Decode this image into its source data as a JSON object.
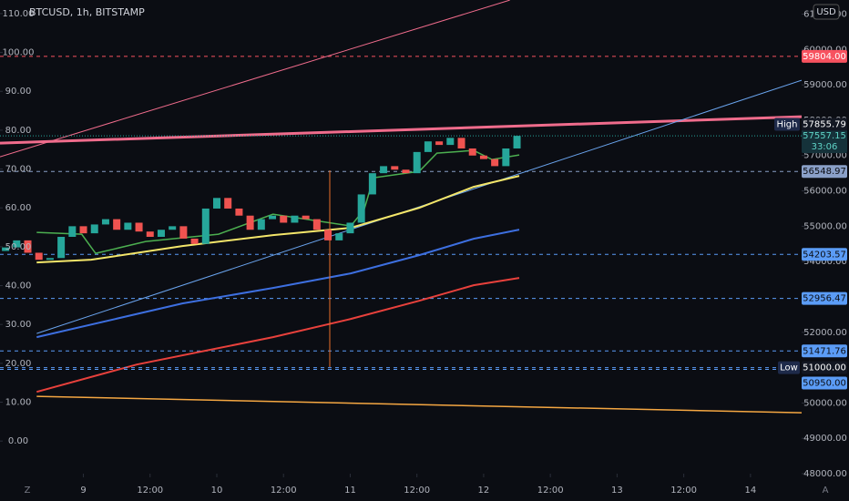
{
  "chart_data": {
    "type": "candlestick",
    "title": "BTCUSD, 1h, BITSTAMP",
    "currency": "USD",
    "corner_labels": [
      "Z",
      "A"
    ],
    "up_color": "#26a69a",
    "down_color": "#ef5350",
    "x": [
      10,
      12,
      14,
      16,
      18,
      20,
      22,
      24,
      26,
      28,
      30,
      32,
      34,
      36,
      38,
      40,
      42,
      44,
      46,
      48,
      50,
      52,
      54,
      56,
      58,
      60,
      62,
      64,
      66,
      68,
      70,
      72,
      74,
      76,
      78,
      80,
      82,
      84,
      86,
      88,
      90,
      92,
      94,
      96,
      98,
      100,
      102
    ],
    "open": [
      54300,
      54400,
      54600,
      54250,
      54050,
      54100,
      54700,
      55000,
      54800,
      55050,
      55200,
      54900,
      55100,
      54850,
      54700,
      54900,
      55000,
      54650,
      54500,
      55500,
      55800,
      55500,
      55300,
      54900,
      55200,
      55300,
      55100,
      55300,
      55200,
      54900,
      54600,
      54800,
      55100,
      55900,
      56500,
      56700,
      56600,
      56500,
      57100,
      57400,
      57300,
      57500,
      57200,
      57000,
      56900,
      56700,
      57200
    ],
    "high": {
      "label": "High",
      "value": 57855.79,
      "value_label": "57855.79"
    },
    "low": {
      "label": "Low",
      "value": 51000,
      "value_label": "51000.00"
    },
    "close": [
      54400,
      54600,
      54250,
      54050,
      54100,
      54700,
      55000,
      54800,
      55050,
      55200,
      54900,
      55100,
      54850,
      54700,
      54900,
      55000,
      54650,
      54500,
      55500,
      55800,
      55500,
      55300,
      54900,
      55200,
      55300,
      55100,
      55300,
      55200,
      54900,
      54600,
      54800,
      55100,
      55900,
      56500,
      56700,
      56600,
      56500,
      57100,
      57400,
      57300,
      57500,
      57200,
      57000,
      56900,
      56700,
      57200,
      57557.15
    ],
    "series": [
      {
        "color": "#f06c8c",
        "line_width": 3,
        "x": [
          9,
          153.2
        ],
        "values": [
          57351,
          58098
        ]
      },
      {
        "color": "#f06c8c",
        "line_width": 1,
        "x": [
          9,
          100.7
        ],
        "values": [
          56964,
          61397
        ]
      },
      {
        "color": "#6aa4ee",
        "line_width": 1,
        "x": [
          15.6,
          153.2
        ],
        "values": [
          51965,
          59129
        ]
      },
      {
        "color": "#f5a742",
        "line_width": 1.5,
        "x": [
          15.6,
          153.2
        ],
        "values": [
          50186,
          49722
        ]
      },
      {
        "color": "#3d6fe0",
        "line_width": 2,
        "x": [
          15.6,
          41.8,
          58.1,
          72.1,
          84.4,
          94.2,
          102.4
        ],
        "values": [
          51862,
          52815,
          53253,
          53666,
          54181,
          54645,
          54903
        ]
      },
      {
        "color": "#e8413c",
        "line_width": 2,
        "x": [
          15.6,
          33.6,
          58.1,
          72.1,
          84.4,
          94.2,
          102.4
        ],
        "values": [
          50315,
          51088,
          51862,
          52377,
          52892,
          53331,
          53537
        ]
      },
      {
        "color": "#f4e66a",
        "line_width": 2,
        "x": [
          15.6,
          25.4,
          41.8,
          58.1,
          72.1,
          84.4,
          94.2,
          102.4
        ],
        "values": [
          53975,
          54052,
          54439,
          54748,
          54954,
          55521,
          56114,
          56423
        ]
      },
      {
        "color": "#4caf50",
        "line_width": 1.5,
        "x": [
          15.6,
          23.7,
          26.2,
          35.2,
          48.3,
          58.1,
          72.1,
          74.5,
          76.2,
          84.4,
          87.6,
          94.2,
          97.5,
          102.4
        ],
        "values": [
          54825,
          54774,
          54232,
          54567,
          54774,
          55341,
          55006,
          55470,
          56371,
          56552,
          57067,
          57144,
          56887,
          57016
        ]
      }
    ],
    "levels": [
      {
        "value": 59804,
        "value_label": "59804.00",
        "color": "#f7525f"
      },
      {
        "value": 56548.97,
        "value_label": "56548.97",
        "color": "#8aa0c8"
      },
      {
        "value": 54203.57,
        "value_label": "54203.57",
        "color": "#5b9cf6"
      },
      {
        "value": 52956.47,
        "value_label": "52956.47",
        "color": "#5b9cf6"
      },
      {
        "value": 51471.76,
        "value_label": "51471.76",
        "color": "#5b9cf6"
      },
      {
        "value": 50950,
        "value_label": "50950.00",
        "color": "#5b9cf6"
      }
    ],
    "last": {
      "value": 57557.15,
      "value_label": "57557.15",
      "countdown": "33:06"
    },
    "xlim": [
      9,
      153.2
    ],
    "xticks": [
      {
        "value": 24,
        "label": "9"
      },
      {
        "value": 36,
        "label": "12:00"
      },
      {
        "value": 48,
        "label": "10"
      },
      {
        "value": 60,
        "label": "12:00"
      },
      {
        "value": 72,
        "label": "11"
      },
      {
        "value": 84,
        "label": "12:00"
      },
      {
        "value": 96,
        "label": "12"
      },
      {
        "value": 108,
        "label": "12:00"
      },
      {
        "value": 120,
        "label": "13"
      },
      {
        "value": 132,
        "label": "12:00"
      },
      {
        "value": 144,
        "label": "14"
      }
    ],
    "ylim": [
      48000,
      61400
    ],
    "yticks": [
      {
        "value": 48000,
        "label": "48000.00"
      },
      {
        "value": 49000,
        "label": "49000.00"
      },
      {
        "value": 50000,
        "label": "50000.00"
      },
      {
        "value": 51000,
        "label": "51000.00"
      },
      {
        "value": 52000,
        "label": "52000.00"
      },
      {
        "value": 53000,
        "label": "53000.00"
      },
      {
        "value": 54000,
        "label": "54000.00"
      },
      {
        "value": 55000,
        "label": "55000.00"
      },
      {
        "value": 56000,
        "label": "56000.00"
      },
      {
        "value": 57000,
        "label": "57000.00"
      },
      {
        "value": 58000,
        "label": "58000.00"
      },
      {
        "value": 59000,
        "label": "59000.00"
      },
      {
        "value": 60000,
        "label": "60000.00"
      },
      {
        "value": 61000,
        "label": "61000.00"
      }
    ],
    "y2lim": [
      -8.4,
      113.5
    ],
    "y2ticks": [
      {
        "value": 0,
        "label": "0.00"
      },
      {
        "value": 10,
        "label": "10.00"
      },
      {
        "value": 20,
        "label": "20.00"
      },
      {
        "value": 30,
        "label": "30.00"
      },
      {
        "value": 40,
        "label": "40.00"
      },
      {
        "value": 50,
        "label": "50.00"
      },
      {
        "value": 60,
        "label": "60.00"
      },
      {
        "value": 70,
        "label": "70.00"
      },
      {
        "value": 80,
        "label": "80.00"
      },
      {
        "value": 90,
        "label": "90.00"
      },
      {
        "value": 100,
        "label": "100.00"
      },
      {
        "value": 110,
        "label": "110.00"
      }
    ]
  }
}
